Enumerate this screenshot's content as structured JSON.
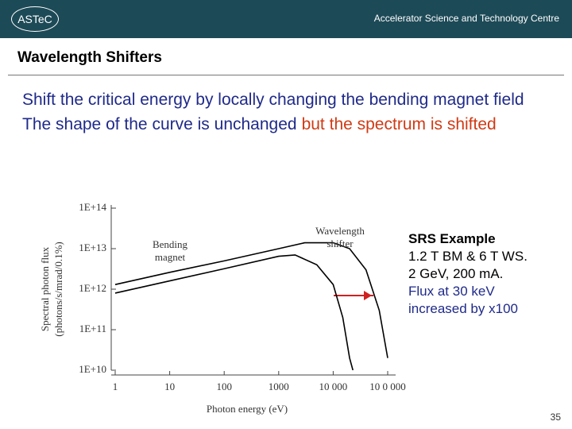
{
  "header": {
    "logo": "ASTeC",
    "centre": "Accelerator Science and Technology Centre"
  },
  "slide": {
    "title": "Wavelength Shifters",
    "bullets": [
      {
        "text": "Shift the critical energy by locally changing the bending magnet field"
      },
      {
        "text": "The shape of the curve is unchanged",
        "highlight": "but the spectrum is shifted"
      }
    ],
    "example": {
      "heading": "SRS Example",
      "lines": [
        "1.2 T BM & 6 T WS.",
        "2 GeV, 200 mA."
      ],
      "highlight_lines": [
        "Flux at 30 keV",
        "increased by x100"
      ]
    },
    "page_number": "35"
  },
  "chart_data": {
    "type": "line",
    "xscale": "log",
    "yscale": "log",
    "xlabel": "Photon energy (eV)",
    "ylabel": [
      "Spectral photon flux",
      "(photons/s/mrad/0.1%)"
    ],
    "xlim": [
      1,
      100000
    ],
    "xticks": [
      1,
      10,
      100,
      1000,
      {
        "value": 10000,
        "label": "10 000"
      },
      {
        "value": 100000,
        "label": "10 0 000"
      }
    ],
    "ylim": [
      10000000000,
      100000000000000
    ],
    "yticks": [
      {
        "value": 10000000000,
        "label": "1E+10"
      },
      {
        "value": 100000000000,
        "label": "1E+11"
      },
      {
        "value": 1000000000000,
        "label": "1E+12"
      },
      {
        "value": 10000000000000,
        "label": "1E+13"
      },
      {
        "value": 100000000000000,
        "label": "1E+14"
      }
    ],
    "series": [
      {
        "name": "Bending magnet",
        "color": "#000000",
        "x": [
          1,
          10,
          100,
          1000,
          2000,
          5000,
          10000,
          15000,
          20000,
          23000
        ],
        "values": [
          800000000000,
          1600000000000,
          3200000000000,
          6500000000000,
          7000000000000,
          4000000000000,
          1300000000000,
          200000000000,
          20000000000,
          10000000000
        ]
      },
      {
        "name": "Wavelength shifter",
        "color": "#000000",
        "x": [
          1,
          10,
          100,
          1000,
          3000,
          10000,
          20000,
          40000,
          70000,
          100000
        ],
        "values": [
          1300000000000,
          2600000000000,
          5000000000000,
          10000000000000,
          14000000000000,
          14000000000000,
          10000000000000,
          3000000000000,
          300000000000,
          20000000000
        ]
      }
    ]
  }
}
